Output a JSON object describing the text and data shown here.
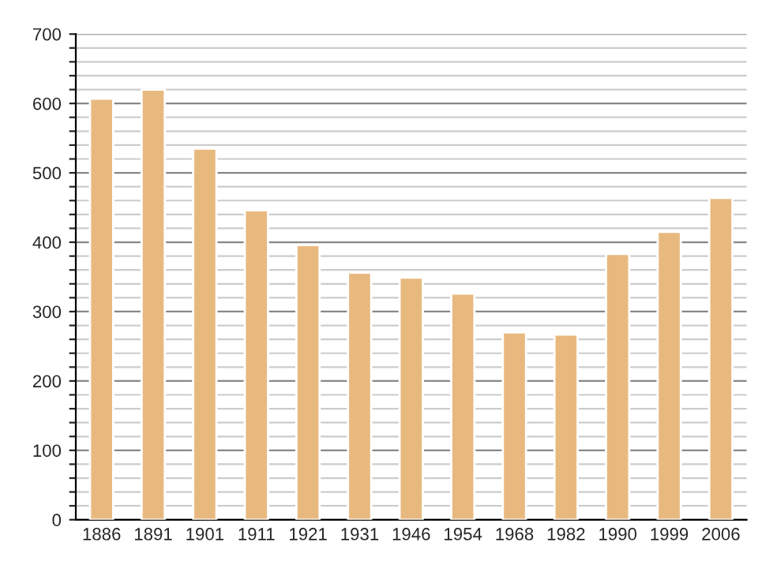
{
  "chart_data": {
    "type": "bar",
    "categories": [
      "1886",
      "1891",
      "1901",
      "1911",
      "1921",
      "1931",
      "1946",
      "1954",
      "1968",
      "1982",
      "1990",
      "1999",
      "2006"
    ],
    "values": [
      607,
      620,
      535,
      446,
      396,
      356,
      349,
      326,
      270,
      267,
      383,
      415,
      464
    ],
    "color": "#e8b97f",
    "ylim": [
      0,
      700
    ],
    "yticks": [
      0,
      {
        "value": 20,
        "label": null
      },
      {
        "value": 40,
        "label": null
      },
      {
        "value": 60,
        "label": null
      },
      {
        "value": 80,
        "label": null
      },
      100,
      {
        "value": 120,
        "label": null
      },
      {
        "value": 140,
        "label": null
      },
      {
        "value": 160,
        "label": null
      },
      {
        "value": 180,
        "label": null
      },
      200,
      {
        "value": 220,
        "label": null
      },
      {
        "value": 240,
        "label": null
      },
      {
        "value": 260,
        "label": null
      },
      {
        "value": 280,
        "label": null
      },
      300,
      {
        "value": 320,
        "label": null
      },
      {
        "value": 340,
        "label": null
      },
      {
        "value": 360,
        "label": null
      },
      {
        "value": 380,
        "label": null
      },
      400,
      {
        "value": 420,
        "label": null
      },
      {
        "value": 440,
        "label": null
      },
      {
        "value": 460,
        "label": null
      },
      {
        "value": 480,
        "label": null
      },
      500,
      {
        "value": 520,
        "label": null
      },
      {
        "value": 540,
        "label": null
      },
      {
        "value": 560,
        "label": null
      },
      {
        "value": 580,
        "label": null
      },
      600,
      {
        "value": 620,
        "label": null
      },
      {
        "value": 640,
        "label": null
      },
      {
        "value": 660,
        "label": null
      },
      {
        "value": 680,
        "label": null
      },
      700
    ],
    "grid": "y"
  }
}
